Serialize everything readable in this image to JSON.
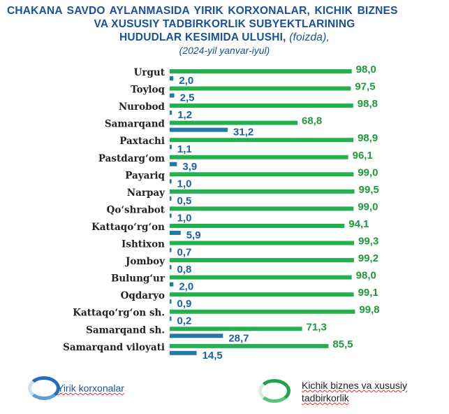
{
  "title": {
    "line1": "CHAKANA SAVDO AYLANMASIDA YIRIK KORXONALAR,    KICHIK BIZNES",
    "line2": "VA XUSUSIY TADBIRKORLIK SUBYEKTLARINING",
    "line3": "HUDUDLAR KESIMIDA ULUSHI,",
    "unit": "(foizda),",
    "period": "(2024-yil yanvar-iyul)"
  },
  "legend": {
    "large": "Yirik korxonalar",
    "small": "Kichik biznes va xususiy tadbirkorlik"
  },
  "colors": {
    "green": "#22b14c",
    "blue": "#1f7aa8",
    "title": "#1a4f9c"
  },
  "chart_data": {
    "type": "bar",
    "orientation": "horizontal",
    "categories": [
      "Urgut",
      "Toyloq",
      "Nurobod",
      "Samarqand",
      "Paxtachi",
      "Pastdarg‘om",
      "Payariq",
      "Narpay",
      "Qo‘shrabot",
      "Kattaqo‘rg‘on",
      "Ishtixon",
      "Jomboy",
      "Bulung‘ur",
      "Oqdaryo",
      "Kattaqo‘rg‘on sh.",
      "Samarqand sh.",
      "Samarqand viloyati"
    ],
    "series": [
      {
        "name": "Kichik biznes va xususiy tadbirkorlik",
        "values": [
          "98,0",
          "97,5",
          "98,8",
          "68,8",
          "98,9",
          "96,1",
          "99,0",
          "99,5",
          "99,0",
          "94,1",
          "99,3",
          "99,2",
          "98,0",
          "99,1",
          "99,8",
          "71,3",
          "85,5"
        ]
      },
      {
        "name": "Yirik korxonalar",
        "values": [
          "2,0",
          "2,5",
          "1,2",
          "31,2",
          "1,1",
          "3,9",
          "1,0",
          "0,5",
          "1,0",
          "5,9",
          "0,7",
          "0,8",
          "2,0",
          "0,9",
          "0,2",
          "28,7",
          "14,5"
        ]
      }
    ],
    "xlim": [
      0,
      100
    ],
    "grid": false,
    "legend_position": "bottom"
  }
}
